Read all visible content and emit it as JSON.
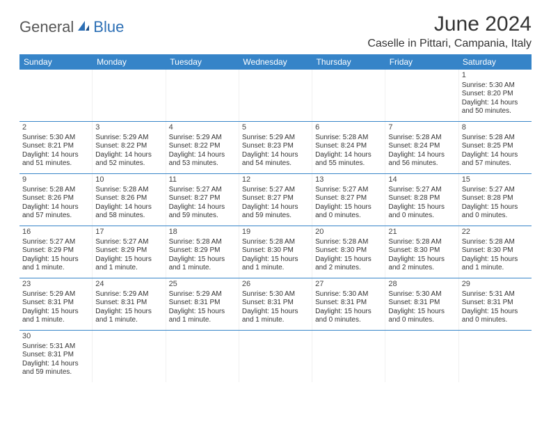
{
  "logo": {
    "text1": "General",
    "text2": "Blue"
  },
  "title": "June 2024",
  "location": "Caselle in Pittari, Campania, Italy",
  "colors": {
    "headerBg": "#3684c8",
    "headerFg": "#ffffff",
    "rule": "#3684c8"
  },
  "dayNames": [
    "Sunday",
    "Monday",
    "Tuesday",
    "Wednesday",
    "Thursday",
    "Friday",
    "Saturday"
  ],
  "weeks": [
    [
      null,
      null,
      null,
      null,
      null,
      null,
      {
        "d": "1",
        "sr": "Sunrise: 5:30 AM",
        "ss": "Sunset: 8:20 PM",
        "dl1": "Daylight: 14 hours",
        "dl2": "and 50 minutes."
      }
    ],
    [
      {
        "d": "2",
        "sr": "Sunrise: 5:30 AM",
        "ss": "Sunset: 8:21 PM",
        "dl1": "Daylight: 14 hours",
        "dl2": "and 51 minutes."
      },
      {
        "d": "3",
        "sr": "Sunrise: 5:29 AM",
        "ss": "Sunset: 8:22 PM",
        "dl1": "Daylight: 14 hours",
        "dl2": "and 52 minutes."
      },
      {
        "d": "4",
        "sr": "Sunrise: 5:29 AM",
        "ss": "Sunset: 8:22 PM",
        "dl1": "Daylight: 14 hours",
        "dl2": "and 53 minutes."
      },
      {
        "d": "5",
        "sr": "Sunrise: 5:29 AM",
        "ss": "Sunset: 8:23 PM",
        "dl1": "Daylight: 14 hours",
        "dl2": "and 54 minutes."
      },
      {
        "d": "6",
        "sr": "Sunrise: 5:28 AM",
        "ss": "Sunset: 8:24 PM",
        "dl1": "Daylight: 14 hours",
        "dl2": "and 55 minutes."
      },
      {
        "d": "7",
        "sr": "Sunrise: 5:28 AM",
        "ss": "Sunset: 8:24 PM",
        "dl1": "Daylight: 14 hours",
        "dl2": "and 56 minutes."
      },
      {
        "d": "8",
        "sr": "Sunrise: 5:28 AM",
        "ss": "Sunset: 8:25 PM",
        "dl1": "Daylight: 14 hours",
        "dl2": "and 57 minutes."
      }
    ],
    [
      {
        "d": "9",
        "sr": "Sunrise: 5:28 AM",
        "ss": "Sunset: 8:26 PM",
        "dl1": "Daylight: 14 hours",
        "dl2": "and 57 minutes."
      },
      {
        "d": "10",
        "sr": "Sunrise: 5:28 AM",
        "ss": "Sunset: 8:26 PM",
        "dl1": "Daylight: 14 hours",
        "dl2": "and 58 minutes."
      },
      {
        "d": "11",
        "sr": "Sunrise: 5:27 AM",
        "ss": "Sunset: 8:27 PM",
        "dl1": "Daylight: 14 hours",
        "dl2": "and 59 minutes."
      },
      {
        "d": "12",
        "sr": "Sunrise: 5:27 AM",
        "ss": "Sunset: 8:27 PM",
        "dl1": "Daylight: 14 hours",
        "dl2": "and 59 minutes."
      },
      {
        "d": "13",
        "sr": "Sunrise: 5:27 AM",
        "ss": "Sunset: 8:27 PM",
        "dl1": "Daylight: 15 hours",
        "dl2": "and 0 minutes."
      },
      {
        "d": "14",
        "sr": "Sunrise: 5:27 AM",
        "ss": "Sunset: 8:28 PM",
        "dl1": "Daylight: 15 hours",
        "dl2": "and 0 minutes."
      },
      {
        "d": "15",
        "sr": "Sunrise: 5:27 AM",
        "ss": "Sunset: 8:28 PM",
        "dl1": "Daylight: 15 hours",
        "dl2": "and 0 minutes."
      }
    ],
    [
      {
        "d": "16",
        "sr": "Sunrise: 5:27 AM",
        "ss": "Sunset: 8:29 PM",
        "dl1": "Daylight: 15 hours",
        "dl2": "and 1 minute."
      },
      {
        "d": "17",
        "sr": "Sunrise: 5:27 AM",
        "ss": "Sunset: 8:29 PM",
        "dl1": "Daylight: 15 hours",
        "dl2": "and 1 minute."
      },
      {
        "d": "18",
        "sr": "Sunrise: 5:28 AM",
        "ss": "Sunset: 8:29 PM",
        "dl1": "Daylight: 15 hours",
        "dl2": "and 1 minute."
      },
      {
        "d": "19",
        "sr": "Sunrise: 5:28 AM",
        "ss": "Sunset: 8:30 PM",
        "dl1": "Daylight: 15 hours",
        "dl2": "and 1 minute."
      },
      {
        "d": "20",
        "sr": "Sunrise: 5:28 AM",
        "ss": "Sunset: 8:30 PM",
        "dl1": "Daylight: 15 hours",
        "dl2": "and 2 minutes."
      },
      {
        "d": "21",
        "sr": "Sunrise: 5:28 AM",
        "ss": "Sunset: 8:30 PM",
        "dl1": "Daylight: 15 hours",
        "dl2": "and 2 minutes."
      },
      {
        "d": "22",
        "sr": "Sunrise: 5:28 AM",
        "ss": "Sunset: 8:30 PM",
        "dl1": "Daylight: 15 hours",
        "dl2": "and 1 minute."
      }
    ],
    [
      {
        "d": "23",
        "sr": "Sunrise: 5:29 AM",
        "ss": "Sunset: 8:31 PM",
        "dl1": "Daylight: 15 hours",
        "dl2": "and 1 minute."
      },
      {
        "d": "24",
        "sr": "Sunrise: 5:29 AM",
        "ss": "Sunset: 8:31 PM",
        "dl1": "Daylight: 15 hours",
        "dl2": "and 1 minute."
      },
      {
        "d": "25",
        "sr": "Sunrise: 5:29 AM",
        "ss": "Sunset: 8:31 PM",
        "dl1": "Daylight: 15 hours",
        "dl2": "and 1 minute."
      },
      {
        "d": "26",
        "sr": "Sunrise: 5:30 AM",
        "ss": "Sunset: 8:31 PM",
        "dl1": "Daylight: 15 hours",
        "dl2": "and 1 minute."
      },
      {
        "d": "27",
        "sr": "Sunrise: 5:30 AM",
        "ss": "Sunset: 8:31 PM",
        "dl1": "Daylight: 15 hours",
        "dl2": "and 0 minutes."
      },
      {
        "d": "28",
        "sr": "Sunrise: 5:30 AM",
        "ss": "Sunset: 8:31 PM",
        "dl1": "Daylight: 15 hours",
        "dl2": "and 0 minutes."
      },
      {
        "d": "29",
        "sr": "Sunrise: 5:31 AM",
        "ss": "Sunset: 8:31 PM",
        "dl1": "Daylight: 15 hours",
        "dl2": "and 0 minutes."
      }
    ],
    [
      {
        "d": "30",
        "sr": "Sunrise: 5:31 AM",
        "ss": "Sunset: 8:31 PM",
        "dl1": "Daylight: 14 hours",
        "dl2": "and 59 minutes."
      },
      null,
      null,
      null,
      null,
      null,
      null
    ]
  ]
}
